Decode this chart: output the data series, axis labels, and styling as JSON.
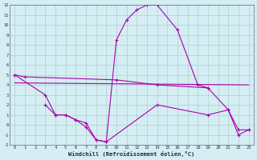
{
  "xlabel": "Windchill (Refroidissement éolien,°C)",
  "background_color": "#d4eef4",
  "grid_color": "#b0cfc8",
  "line_color": "#aa00aa",
  "xlim": [
    -0.5,
    23.5
  ],
  "ylim": [
    -2,
    12
  ],
  "line1_x": [
    0,
    1,
    10,
    14,
    19
  ],
  "line1_y": [
    5.0,
    4.8,
    4.5,
    4.0,
    3.7
  ],
  "line2_x": [
    0,
    23
  ],
  "line2_y": [
    4.2,
    4.0
  ],
  "line3_x": [
    0,
    3,
    4,
    5,
    6,
    7,
    8,
    9,
    10,
    11,
    12,
    13,
    14,
    16,
    18,
    19,
    21,
    22,
    23
  ],
  "line3_y": [
    5.0,
    3.0,
    1.0,
    1.0,
    0.5,
    0.2,
    -1.5,
    -1.7,
    8.5,
    10.5,
    11.5,
    12.0,
    12.0,
    9.5,
    4.0,
    3.7,
    1.5,
    -0.5,
    -0.5
  ],
  "line4_x": [
    3,
    4,
    5,
    6,
    7,
    8,
    9,
    14,
    19,
    21,
    22,
    23
  ],
  "line4_y": [
    2.0,
    1.0,
    1.0,
    0.5,
    -0.2,
    -1.5,
    -1.7,
    2.0,
    1.0,
    1.5,
    -1.0,
    -0.5
  ]
}
